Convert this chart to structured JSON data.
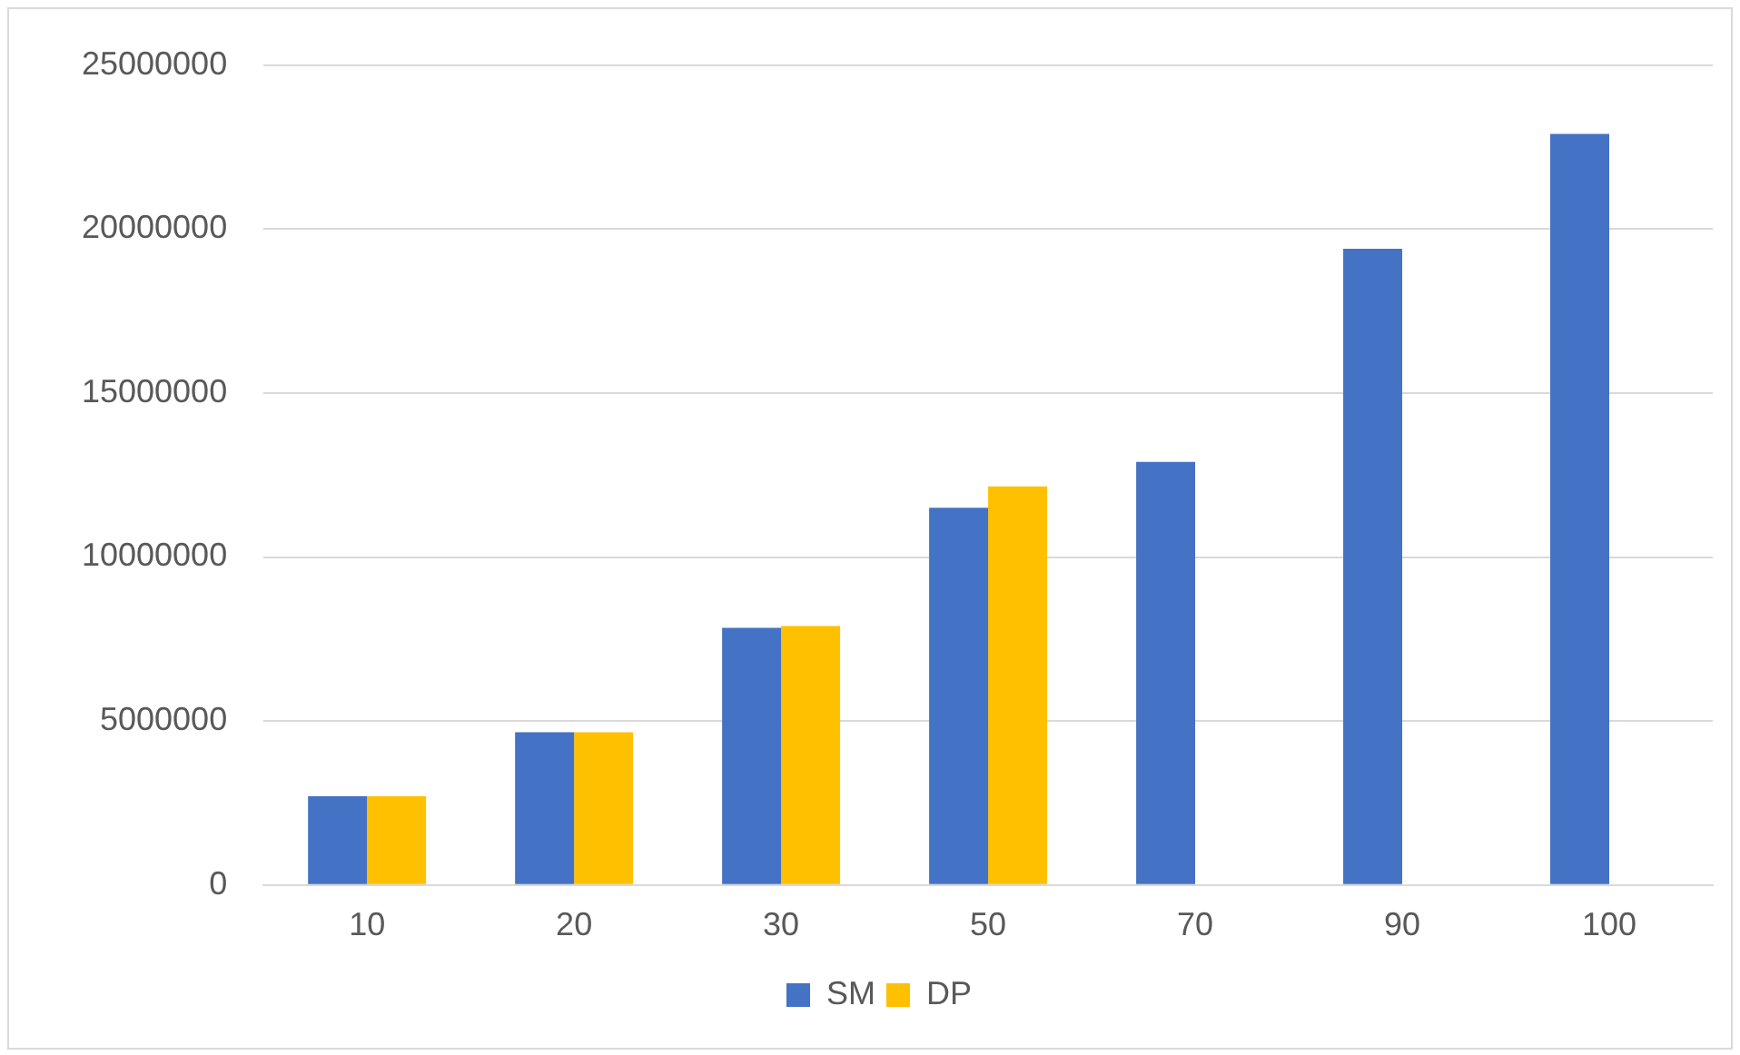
{
  "chart_data": {
    "type": "bar",
    "categories": [
      "10",
      "20",
      "30",
      "50",
      "70",
      "90",
      "100"
    ],
    "series": [
      {
        "name": "SM",
        "color": "#4472c4",
        "values": [
          2710000,
          4660000,
          7840000,
          11500000,
          12900000,
          19400000,
          22900000
        ]
      },
      {
        "name": "DP",
        "color": "#ffc000",
        "values": [
          2710000,
          4660000,
          7900000,
          12150000,
          null,
          null,
          null
        ]
      }
    ],
    "ylim": [
      0,
      25000000
    ],
    "yticks": [
      0,
      5000000,
      10000000,
      15000000,
      20000000,
      25000000
    ],
    "grid": "y",
    "legend": "bottom"
  }
}
